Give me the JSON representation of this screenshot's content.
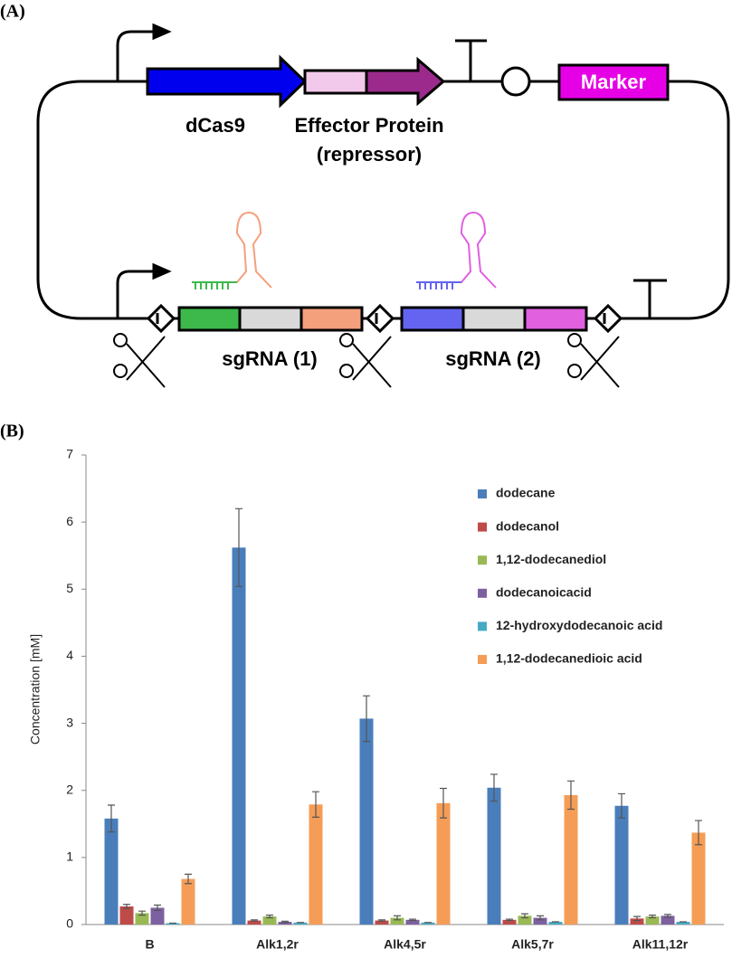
{
  "panel_a": {
    "label": "(A)",
    "gene": "dCas9",
    "effector": "Effector Protein",
    "effector_note": "(repressor)",
    "marker": "Marker",
    "sgrna_1": "sgRNA (1)",
    "sgrna_2": "sgRNA (2)"
  },
  "chart_data": {
    "type": "bar",
    "panel_label": "(B)",
    "y_label": "Concentration [mM]",
    "categories": [
      "B",
      "Alk1,2r",
      "Alk4,5r",
      "Alk5,7r",
      "Alk11,12r"
    ],
    "series": [
      {
        "name": "dodecane",
        "color": "#4a7ebb",
        "values": [
          1.58,
          5.62,
          3.07,
          2.04,
          1.77
        ],
        "errors": [
          0.2,
          0.58,
          0.34,
          0.2,
          0.18
        ]
      },
      {
        "name": "dodecanol",
        "color": "#be4b48",
        "values": [
          0.27,
          0.06,
          0.06,
          0.07,
          0.09
        ],
        "errors": [
          0.03,
          0.01,
          0.01,
          0.01,
          0.03
        ]
      },
      {
        "name": "1,12-dodecanediol",
        "color": "#98b954",
        "values": [
          0.17,
          0.12,
          0.1,
          0.13,
          0.12
        ],
        "errors": [
          0.03,
          0.02,
          0.03,
          0.03,
          0.02
        ]
      },
      {
        "name": "dodecanoicacid",
        "color": "#7d60a0",
        "values": [
          0.25,
          0.04,
          0.07,
          0.1,
          0.13
        ],
        "errors": [
          0.04,
          0.01,
          0.01,
          0.03,
          0.02
        ]
      },
      {
        "name": "12-hydroxydodecanoic acid",
        "color": "#46aac5",
        "values": [
          0.02,
          0.03,
          0.03,
          0.04,
          0.04
        ],
        "errors": [
          0,
          0,
          0,
          0,
          0
        ]
      },
      {
        "name": "1,12-dodecanedioic acid",
        "color": "#f59d56",
        "values": [
          0.68,
          1.79,
          1.81,
          1.93,
          1.37
        ],
        "errors": [
          0.07,
          0.19,
          0.22,
          0.21,
          0.18
        ]
      }
    ],
    "ylim": [
      0,
      7
    ],
    "yticks": [
      0,
      1,
      2,
      3,
      4,
      5,
      6,
      7
    ],
    "grid": false,
    "legend": "upper-right"
  }
}
